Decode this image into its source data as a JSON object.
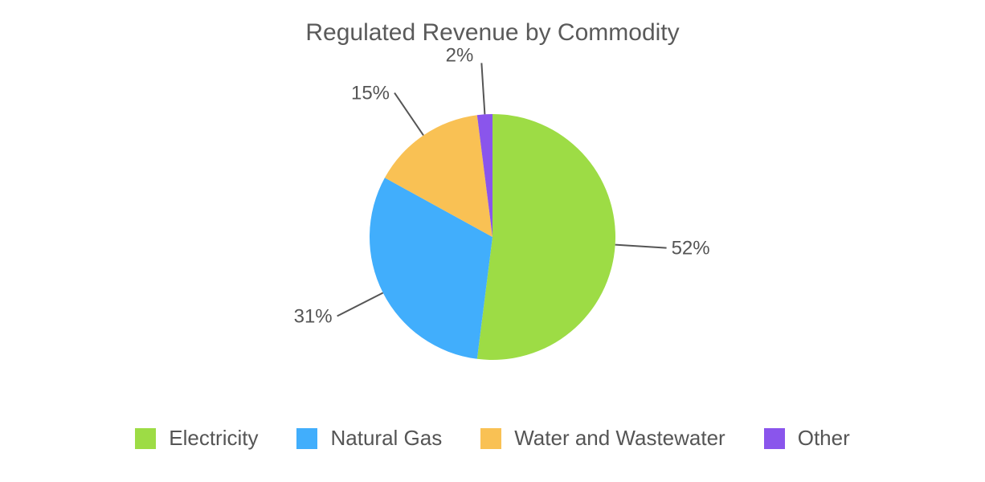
{
  "chart_data": {
    "type": "pie",
    "title": "Regulated Revenue by Commodity",
    "categories": [
      "Electricity",
      "Natural Gas",
      "Water and Wastewater",
      "Other"
    ],
    "values": [
      52,
      31,
      15,
      2
    ],
    "value_labels": [
      "52%",
      "31%",
      "15%",
      "2%"
    ],
    "colors": [
      "#9ddc45",
      "#41aefc",
      "#f9c154",
      "#8a55ec"
    ],
    "start_angle_deg": 0,
    "direction": "clockwise",
    "legend": "bottom"
  }
}
